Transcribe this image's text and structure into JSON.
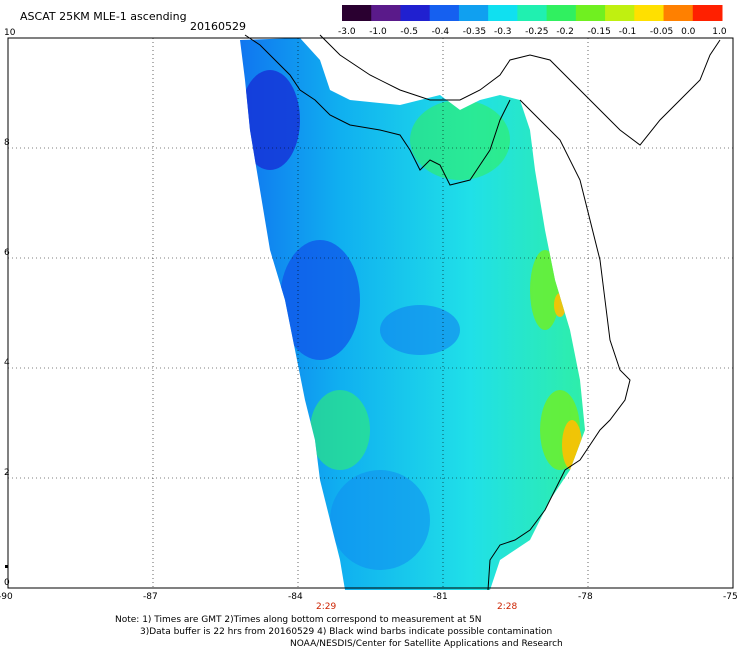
{
  "title": "ASCAT 25KM MLE-1 ascending",
  "date": "20160529",
  "colorbar": {
    "labels": [
      "-3.0",
      "-1.0",
      "-0.5",
      "-0.4",
      "-0.35",
      "-0.3",
      "-0.25",
      "-0.2",
      "-0.15",
      "-0.1",
      "-0.05",
      "0.0",
      "1.0"
    ],
    "colors": [
      "#2a0030",
      "#5a1a8a",
      "#2020d0",
      "#1560f0",
      "#10a0f0",
      "#10e0f0",
      "#20f0b0",
      "#30f060",
      "#70f020",
      "#c0f010",
      "#ffe000",
      "#ff8000",
      "#ff2000"
    ]
  },
  "axes": {
    "y_ticks": [
      "10",
      "8",
      "6",
      "4",
      "2",
      "0"
    ],
    "x_ticks": [
      "-90",
      "-87",
      "-84",
      "-81",
      "-78",
      "-75"
    ],
    "x_range": [
      -90,
      -75
    ],
    "y_range": [
      0,
      10
    ]
  },
  "times": [
    "2:29",
    "2:28"
  ],
  "notes": {
    "line1": "Note: 1) Times are GMT 2)Times along bottom correspond to measurement at 5N",
    "line2": "3)Data buffer is 22 hrs from 20160529 4) Black wind barbs indicate possible contamination",
    "line3": "NOAA/NESDIS/Center for Satellite Applications and Research"
  }
}
